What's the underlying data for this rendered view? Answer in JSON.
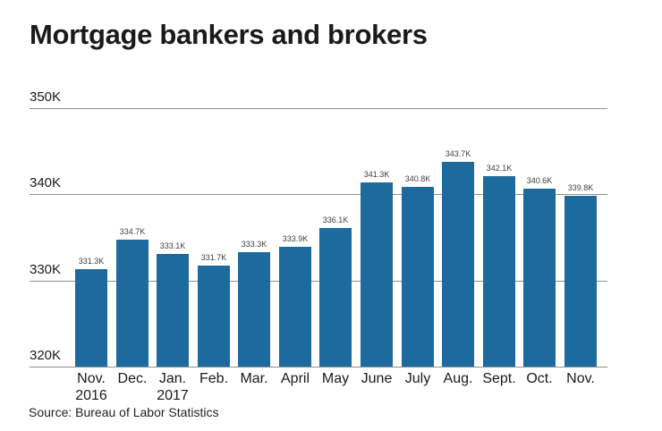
{
  "title": "Mortgage bankers and brokers",
  "source": "Source: Bureau of Labor Statistics",
  "colors": {
    "bar": "#1d6a9f",
    "gridline": "#8f8f8f",
    "title_text": "#1a1a1a",
    "axis_text": "#1a1a1a",
    "value_text": "#3f3f3f"
  },
  "chart_data": {
    "type": "bar",
    "title": "Mortgage bankers and brokers",
    "categories": [
      {
        "label": "Nov.",
        "sublabel": "2016"
      },
      {
        "label": "Dec.",
        "sublabel": ""
      },
      {
        "label": "Jan.",
        "sublabel": "2017"
      },
      {
        "label": "Feb.",
        "sublabel": ""
      },
      {
        "label": "Mar.",
        "sublabel": ""
      },
      {
        "label": "April",
        "sublabel": ""
      },
      {
        "label": "May",
        "sublabel": ""
      },
      {
        "label": "June",
        "sublabel": ""
      },
      {
        "label": "July",
        "sublabel": ""
      },
      {
        "label": "Aug.",
        "sublabel": ""
      },
      {
        "label": "Sept.",
        "sublabel": ""
      },
      {
        "label": "Oct.",
        "sublabel": ""
      },
      {
        "label": "Nov.",
        "sublabel": ""
      }
    ],
    "values": [
      331.3,
      334.7,
      333.1,
      331.7,
      333.3,
      333.9,
      336.1,
      341.3,
      340.8,
      343.7,
      342.1,
      340.6,
      339.8
    ],
    "value_labels": [
      "331.3K",
      "334.7K",
      "333.1K",
      "331.7K",
      "333.3K",
      "333.9K",
      "336.1K",
      "341.3K",
      "340.8K",
      "343.7K",
      "342.1K",
      "340.6K",
      "339.8K"
    ],
    "unit": "K",
    "y_tick_values": [
      350,
      340,
      330,
      320
    ],
    "y_tick_labels": [
      "350K",
      "340K",
      "330K",
      "320K"
    ],
    "ylim": [
      320,
      350
    ],
    "grid": "horizontal",
    "legend": "none",
    "xlabel": "",
    "ylabel": "",
    "source": "Source: Bureau of Labor Statistics"
  }
}
